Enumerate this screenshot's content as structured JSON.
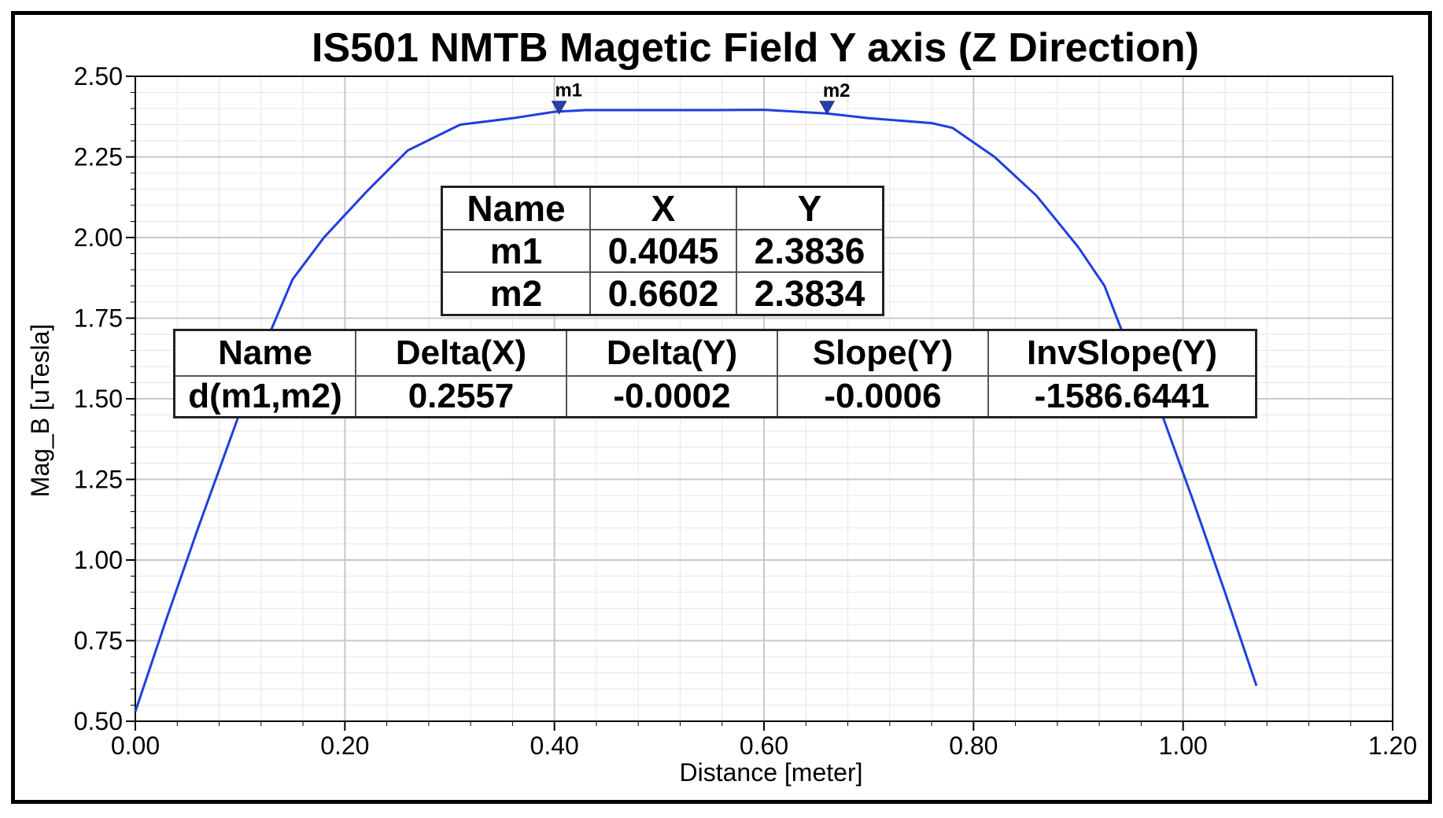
{
  "chart_data": {
    "type": "line",
    "title": "IS501  NMTB Magetic Field Y axis (Z Direction)",
    "xlabel": "Distance [meter]",
    "ylabel": "Mag_B [uTesla]",
    "xlim": [
      0.0,
      1.2
    ],
    "ylim": [
      0.5,
      2.5
    ],
    "xticks": [
      "0.00",
      "0.20",
      "0.40",
      "0.60",
      "0.80",
      "1.00",
      "1.20"
    ],
    "yticks": [
      "0.50",
      "0.75",
      "1.00",
      "1.25",
      "1.50",
      "1.75",
      "2.00",
      "2.25",
      "2.50"
    ],
    "grid": true,
    "series": [
      {
        "color": "#1f3fe0",
        "x": [
          0.0,
          0.03,
          0.06,
          0.09,
          0.12,
          0.15,
          0.18,
          0.22,
          0.26,
          0.31,
          0.36,
          0.4,
          0.43,
          0.5,
          0.55,
          0.6,
          0.66,
          0.7,
          0.76,
          0.78,
          0.82,
          0.86,
          0.9,
          0.925,
          0.95,
          0.98,
          1.01,
          1.04,
          1.07
        ],
        "y": [
          0.53,
          0.82,
          1.1,
          1.37,
          1.64,
          1.87,
          2.0,
          2.14,
          2.27,
          2.35,
          2.37,
          2.39,
          2.395,
          2.395,
          2.395,
          2.396,
          2.385,
          2.37,
          2.355,
          2.34,
          2.25,
          2.13,
          1.97,
          1.85,
          1.64,
          1.45,
          1.18,
          0.9,
          0.61
        ]
      }
    ],
    "markers": [
      {
        "name": "m1",
        "x": 0.4045,
        "y": 2.3836
      },
      {
        "name": "m2",
        "x": 0.6602,
        "y": 2.3834
      }
    ]
  },
  "marker_table": {
    "headers": [
      "Name",
      "X",
      "Y"
    ],
    "rows": [
      [
        "m1",
        "0.4045",
        "2.3836"
      ],
      [
        "m2",
        "0.6602",
        "2.3834"
      ]
    ]
  },
  "delta_table": {
    "headers": [
      "Name",
      "Delta(X)",
      "Delta(Y)",
      "Slope(Y)",
      "InvSlope(Y)"
    ],
    "rows": [
      [
        "d(m1,m2)",
        "0.2557",
        "-0.0002",
        "-0.0006",
        "-1586.6441"
      ]
    ]
  }
}
